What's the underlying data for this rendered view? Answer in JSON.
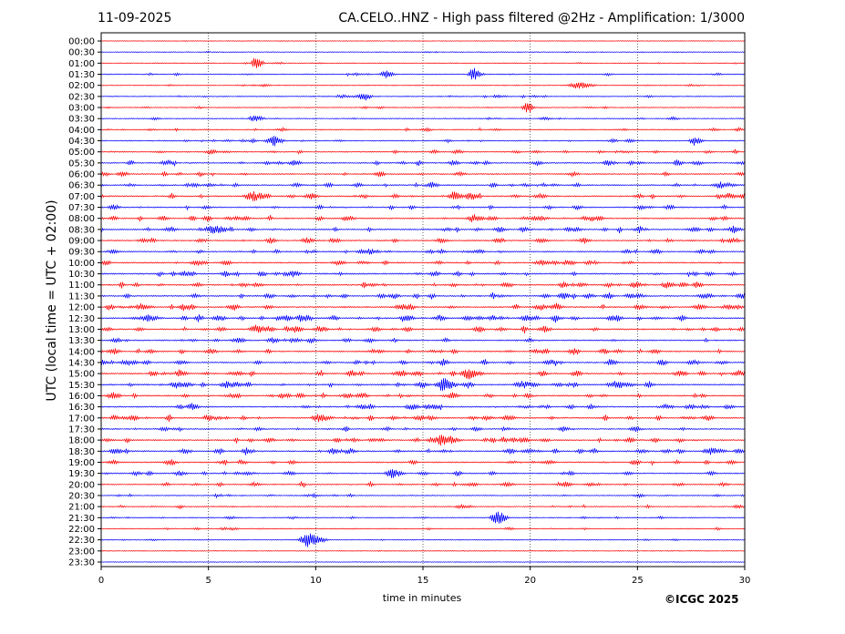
{
  "header": {
    "date": "11-09-2025",
    "title": "CA.CELO..HNZ - High pass filtered @2Hz - Amplification: 1/3000"
  },
  "copyright": "©ICGC 2025",
  "chart_data": {
    "type": "line",
    "title": "CA.CELO..HNZ - High pass filtered @2Hz - Amplification: 1/3000",
    "xlabel": "time in minutes",
    "ylabel": "UTC (local time = UTC + 02:00)",
    "xlim": [
      0,
      30
    ],
    "xticks": [
      0,
      5,
      10,
      15,
      20,
      25,
      30
    ],
    "grid": "vertical dotted at x ticks",
    "row_labels": [
      "00:00",
      "00:30",
      "01:00",
      "01:30",
      "02:00",
      "02:30",
      "03:00",
      "03:30",
      "04:00",
      "04:30",
      "05:00",
      "05:30",
      "06:00",
      "06:30",
      "07:00",
      "07:30",
      "08:00",
      "08:30",
      "09:00",
      "09:30",
      "10:00",
      "10:30",
      "11:00",
      "11:30",
      "12:00",
      "12:30",
      "13:00",
      "13:30",
      "14:00",
      "14:30",
      "15:00",
      "15:30",
      "16:00",
      "16:30",
      "17:00",
      "17:30",
      "18:00",
      "18:30",
      "19:00",
      "19:30",
      "20:00",
      "20:30",
      "21:00",
      "21:30",
      "22:00",
      "22:30",
      "23:00",
      "23:30"
    ],
    "trace_colors": [
      "#ff0000",
      "#0000ff"
    ],
    "row_activity": [
      0.15,
      0.3,
      0.4,
      0.5,
      0.4,
      0.6,
      0.4,
      0.5,
      0.6,
      0.7,
      0.8,
      1.0,
      0.9,
      1.0,
      1.1,
      0.9,
      1.0,
      1.2,
      1.0,
      1.0,
      1.0,
      1.2,
      1.2,
      1.1,
      1.2,
      1.3,
      1.2,
      1.0,
      1.1,
      1.1,
      1.2,
      1.2,
      1.2,
      1.1,
      1.2,
      1.0,
      1.1,
      1.2,
      1.0,
      0.9,
      0.9,
      0.6,
      0.6,
      0.5,
      0.5,
      0.35,
      0.25,
      0.15
    ],
    "notable_events": [
      {
        "row": "01:00",
        "x": 7.2
      },
      {
        "row": "01:30",
        "x": 13.2
      },
      {
        "row": "01:30",
        "x": 17.3
      },
      {
        "row": "02:00",
        "x": 22.2
      },
      {
        "row": "02:30",
        "x": 12.2
      },
      {
        "row": "03:00",
        "x": 19.8
      },
      {
        "row": "03:30",
        "x": 7.1
      },
      {
        "row": "04:30",
        "x": 8.0
      },
      {
        "row": "04:30",
        "x": 27.6
      },
      {
        "row": "05:30",
        "x": 26.8
      },
      {
        "row": "06:30",
        "x": 28.8
      },
      {
        "row": "07:00",
        "x": 16.4
      },
      {
        "row": "07:00",
        "x": 17.2
      },
      {
        "row": "07:00",
        "x": 7.0
      },
      {
        "row": "08:00",
        "x": 17.3
      },
      {
        "row": "08:30",
        "x": 5.2
      },
      {
        "row": "12:30",
        "x": 2.1
      },
      {
        "row": "12:30",
        "x": 9.2
      },
      {
        "row": "13:00",
        "x": 7.2
      },
      {
        "row": "15:00",
        "x": 3.6
      },
      {
        "row": "15:00",
        "x": 17.1
      },
      {
        "row": "15:30",
        "x": 15.9
      },
      {
        "row": "15:30",
        "x": 19.6
      },
      {
        "row": "17:00",
        "x": 10.1
      },
      {
        "row": "18:00",
        "x": 15.9
      },
      {
        "row": "18:30",
        "x": 28.4
      },
      {
        "row": "19:30",
        "x": 13.5
      },
      {
        "row": "21:30",
        "x": 18.4
      },
      {
        "row": "22:30",
        "x": 9.6
      }
    ]
  }
}
